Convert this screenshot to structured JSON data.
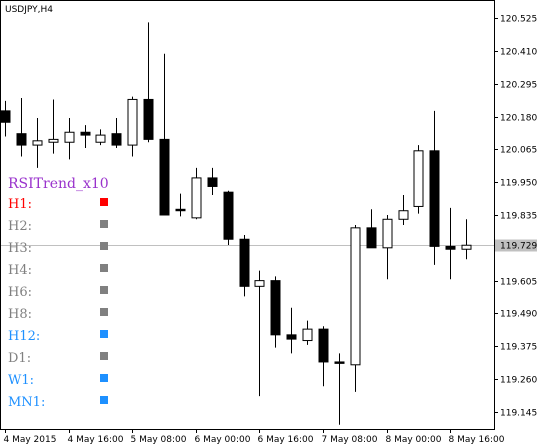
{
  "title": "USDJPY,H4",
  "colors": {
    "bull_body": "#ffffff",
    "bear_body": "#000000",
    "price_line": "#c0c0c0",
    "price_tag_bg": "#c0c0c0",
    "price_tag_text": "#ffffff",
    "up": "#1e90ff",
    "down": "#ff0000",
    "neutral": "#808080",
    "indicator_title": "#9932cc"
  },
  "chart_data": {
    "type": "candlestick",
    "symbol": "USDJPY",
    "timeframe": "H4",
    "ylim": [
      119.085,
      120.585
    ],
    "yticks": [
      120.525,
      120.41,
      120.295,
      120.18,
      120.065,
      119.95,
      119.835,
      119.72,
      119.605,
      119.49,
      119.375,
      119.26,
      119.145
    ],
    "ytick_labels": [
      "120.525",
      "120.410",
      "120.295",
      "120.180",
      "120.065",
      "119.950",
      "119.835",
      "119.720",
      "119.605",
      "119.490",
      "119.375",
      "119.260",
      "119.145"
    ],
    "current_price": 119.729,
    "current_price_label": "119.729",
    "xtick_labels": [
      "4 May 2015",
      "4 May 16:00",
      "5 May 08:00",
      "6 May 00:00",
      "6 May 16:00",
      "7 May 08:00",
      "8 May 00:00",
      "8 May 16:00"
    ],
    "xtick_bar_index": [
      0,
      4,
      8,
      12,
      16,
      20,
      24,
      28
    ],
    "candles": [
      {
        "o": 120.2,
        "h": 120.235,
        "l": 120.11,
        "c": 120.16
      },
      {
        "o": 120.12,
        "h": 120.245,
        "l": 120.04,
        "c": 120.08
      },
      {
        "o": 120.08,
        "h": 120.175,
        "l": 120.0,
        "c": 120.095
      },
      {
        "o": 120.09,
        "h": 120.24,
        "l": 120.05,
        "c": 120.1
      },
      {
        "o": 120.09,
        "h": 120.175,
        "l": 120.03,
        "c": 120.125
      },
      {
        "o": 120.125,
        "h": 120.15,
        "l": 120.07,
        "c": 120.115
      },
      {
        "o": 120.09,
        "h": 120.135,
        "l": 120.08,
        "c": 120.115
      },
      {
        "o": 120.12,
        "h": 120.175,
        "l": 120.07,
        "c": 120.08
      },
      {
        "o": 120.08,
        "h": 120.25,
        "l": 120.04,
        "c": 120.24
      },
      {
        "o": 120.24,
        "h": 120.51,
        "l": 120.09,
        "c": 120.1
      },
      {
        "o": 120.1,
        "h": 120.4,
        "l": 119.835,
        "c": 119.835
      },
      {
        "o": 119.855,
        "h": 119.91,
        "l": 119.83,
        "c": 119.85
      },
      {
        "o": 119.825,
        "h": 120.0,
        "l": 119.82,
        "c": 119.965
      },
      {
        "o": 119.965,
        "h": 120.0,
        "l": 119.905,
        "c": 119.935
      },
      {
        "o": 119.915,
        "h": 119.92,
        "l": 119.73,
        "c": 119.75
      },
      {
        "o": 119.75,
        "h": 119.765,
        "l": 119.55,
        "c": 119.585
      },
      {
        "o": 119.585,
        "h": 119.64,
        "l": 119.2,
        "c": 119.605
      },
      {
        "o": 119.605,
        "h": 119.62,
        "l": 119.37,
        "c": 119.415
      },
      {
        "o": 119.415,
        "h": 119.51,
        "l": 119.35,
        "c": 119.4
      },
      {
        "o": 119.395,
        "h": 119.465,
        "l": 119.38,
        "c": 119.435
      },
      {
        "o": 119.435,
        "h": 119.445,
        "l": 119.235,
        "c": 119.32
      },
      {
        "o": 119.32,
        "h": 119.35,
        "l": 119.1,
        "c": 119.315
      },
      {
        "o": 119.31,
        "h": 119.8,
        "l": 119.215,
        "c": 119.79
      },
      {
        "o": 119.79,
        "h": 119.855,
        "l": 119.72,
        "c": 119.72
      },
      {
        "o": 119.72,
        "h": 119.835,
        "l": 119.61,
        "c": 119.82
      },
      {
        "o": 119.82,
        "h": 119.905,
        "l": 119.8,
        "c": 119.85
      },
      {
        "o": 119.865,
        "h": 120.08,
        "l": 119.84,
        "c": 120.06
      },
      {
        "o": 120.06,
        "h": 120.2,
        "l": 119.66,
        "c": 119.725
      },
      {
        "o": 119.725,
        "h": 119.86,
        "l": 119.61,
        "c": 119.715
      },
      {
        "o": 119.715,
        "h": 119.82,
        "l": 119.68,
        "c": 119.729
      }
    ]
  },
  "indicator": {
    "title": "RSITrend_x10",
    "rows": [
      {
        "label": "H1:",
        "state": "down"
      },
      {
        "label": "H2:",
        "state": "neutral"
      },
      {
        "label": "H3:",
        "state": "neutral"
      },
      {
        "label": "H4:",
        "state": "neutral"
      },
      {
        "label": "H6:",
        "state": "neutral"
      },
      {
        "label": "H8:",
        "state": "neutral"
      },
      {
        "label": "H12:",
        "state": "up"
      },
      {
        "label": "D1:",
        "state": "neutral"
      },
      {
        "label": "W1:",
        "state": "up"
      },
      {
        "label": "MN1:",
        "state": "up"
      }
    ]
  }
}
